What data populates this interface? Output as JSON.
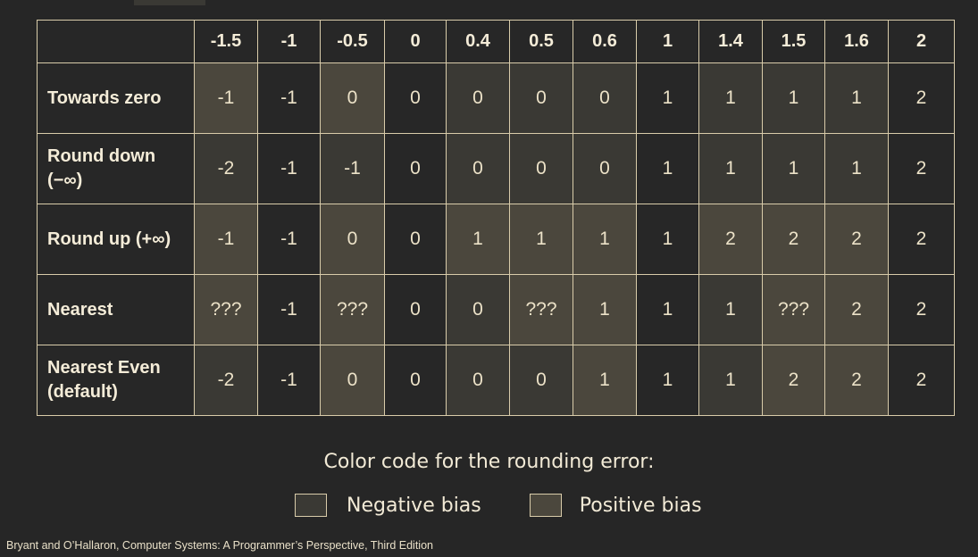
{
  "table": {
    "columns": [
      "-1.5",
      "-1",
      "-0.5",
      "0",
      "0.4",
      "0.5",
      "0.6",
      "1",
      "1.4",
      "1.5",
      "1.6",
      "2"
    ],
    "rows": [
      {
        "label": "Towards zero",
        "values": [
          "-1",
          "-1",
          "0",
          "0",
          "0",
          "0",
          "0",
          "1",
          "1",
          "1",
          "1",
          "2"
        ]
      },
      {
        "label": "Round down (−∞)",
        "values": [
          "-2",
          "-1",
          "-1",
          "0",
          "0",
          "0",
          "0",
          "1",
          "1",
          "1",
          "1",
          "2"
        ]
      },
      {
        "label": "Round up (+∞)",
        "values": [
          "-1",
          "-1",
          "0",
          "0",
          "1",
          "1",
          "1",
          "1",
          "2",
          "2",
          "2",
          "2"
        ]
      },
      {
        "label": "Nearest",
        "values": [
          "???",
          "-1",
          "???",
          "0",
          "0",
          "???",
          "1",
          "1",
          "1",
          "???",
          "2",
          "2"
        ]
      },
      {
        "label": "Nearest Even (default)",
        "values": [
          "-2",
          "-1",
          "0",
          "0",
          "0",
          "0",
          "1",
          "1",
          "1",
          "2",
          "2",
          "2"
        ]
      }
    ]
  },
  "legend": {
    "title": "Color code for the rounding error:",
    "negative_label": "Negative bias",
    "positive_label": "Positive bias",
    "negative_color": "#3a3934",
    "positive_color": "#4b473d"
  },
  "footer": "Bryant and O’Hallaron, Computer Systems: A Programmer’s Perspective, Third Edition"
}
